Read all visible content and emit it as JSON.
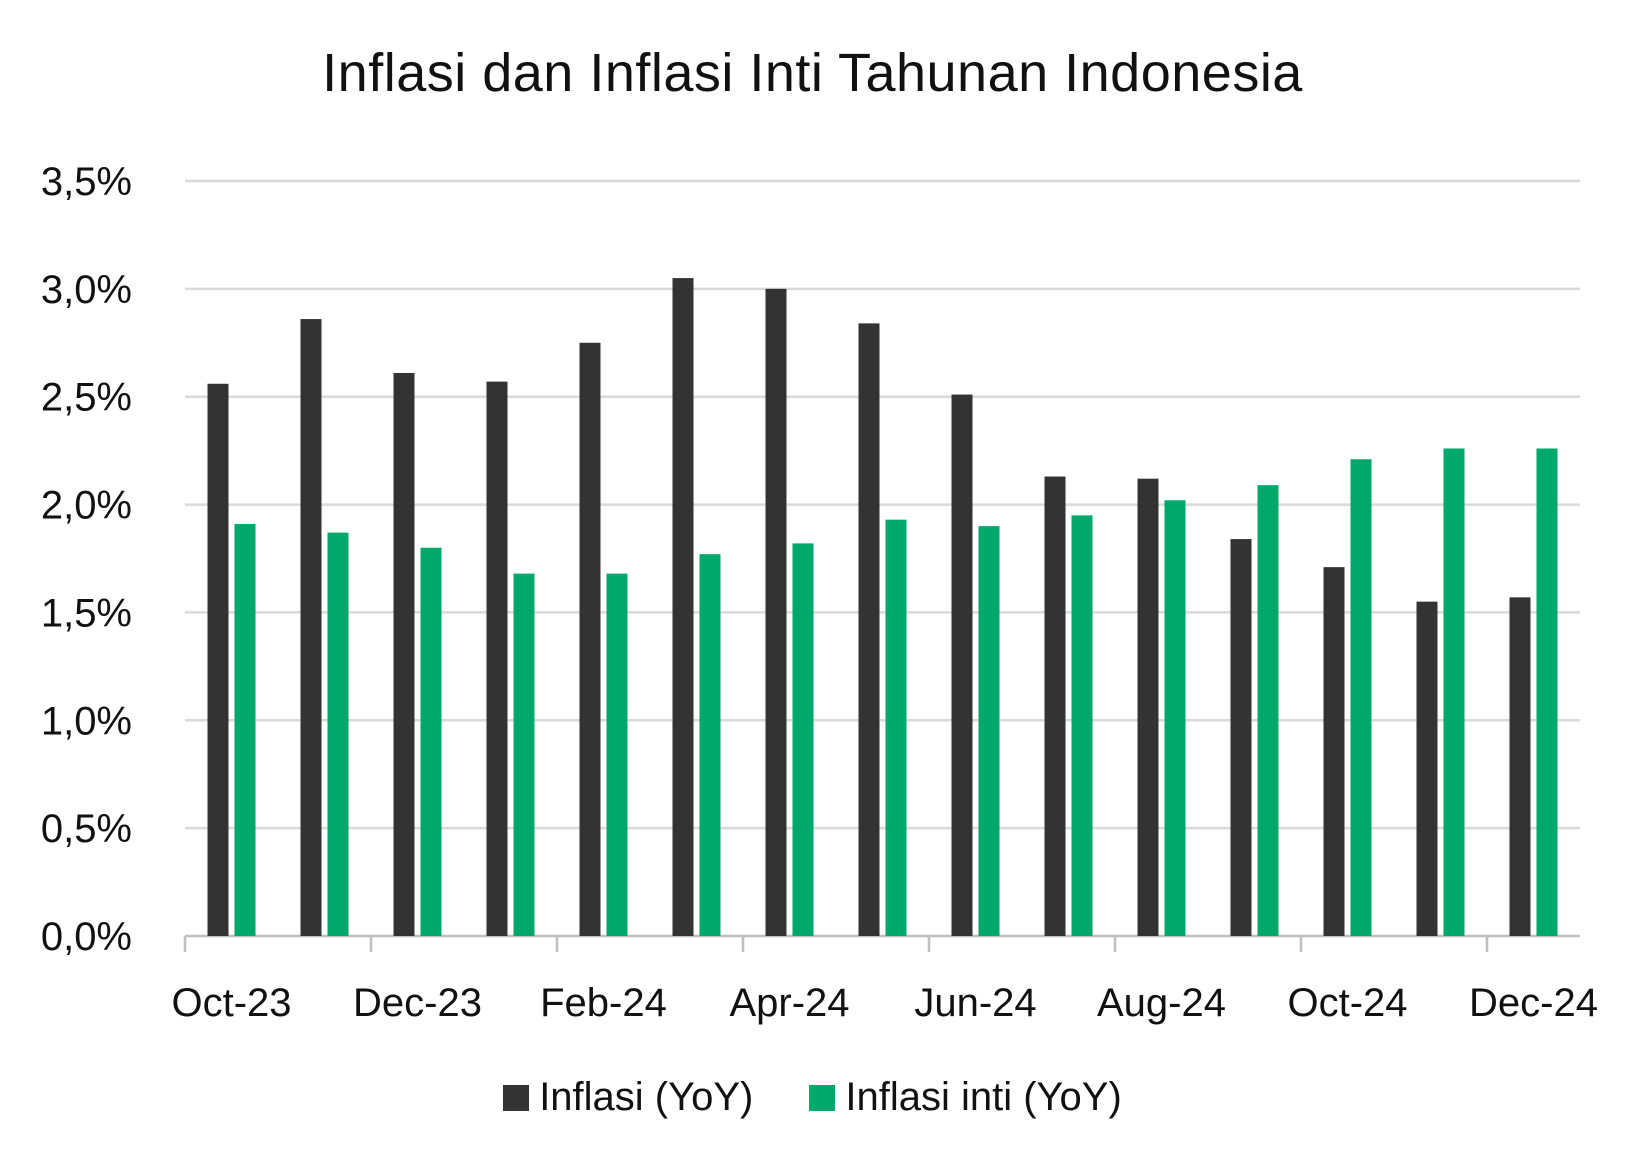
{
  "chart_data": {
    "type": "bar",
    "title": "Inflasi dan Inflasi Inti Tahunan Indonesia",
    "categories": [
      "Oct-23",
      "Nov-23",
      "Dec-23",
      "Jan-24",
      "Feb-24",
      "Mar-24",
      "Apr-24",
      "May-24",
      "Jun-24",
      "Jul-24",
      "Aug-24",
      "Sep-24",
      "Oct-24",
      "Nov-24",
      "Dec-24"
    ],
    "x_tick_labels": [
      "Oct-23",
      "Dec-23",
      "Feb-24",
      "Apr-24",
      "Jun-24",
      "Aug-24",
      "Oct-24",
      "Dec-24"
    ],
    "y_tick_labels": [
      "0,0%",
      "0,5%",
      "1,0%",
      "1,5%",
      "2,0%",
      "2,5%",
      "3,0%",
      "3,5%"
    ],
    "ylim": [
      0,
      3.5
    ],
    "y_step": 0.5,
    "grid": true,
    "legend_position": "bottom",
    "series": [
      {
        "name": "Inflasi (YoY)",
        "color": "#333333",
        "values": [
          2.56,
          2.86,
          2.61,
          2.57,
          2.75,
          3.05,
          3.0,
          2.84,
          2.51,
          2.13,
          2.12,
          1.84,
          1.71,
          1.55,
          1.57
        ]
      },
      {
        "name": "Inflasi inti (YoY)",
        "color": "#00A86B",
        "values": [
          1.91,
          1.87,
          1.8,
          1.68,
          1.68,
          1.77,
          1.82,
          1.93,
          1.9,
          1.95,
          2.02,
          2.09,
          2.21,
          2.26,
          2.26
        ]
      }
    ]
  }
}
